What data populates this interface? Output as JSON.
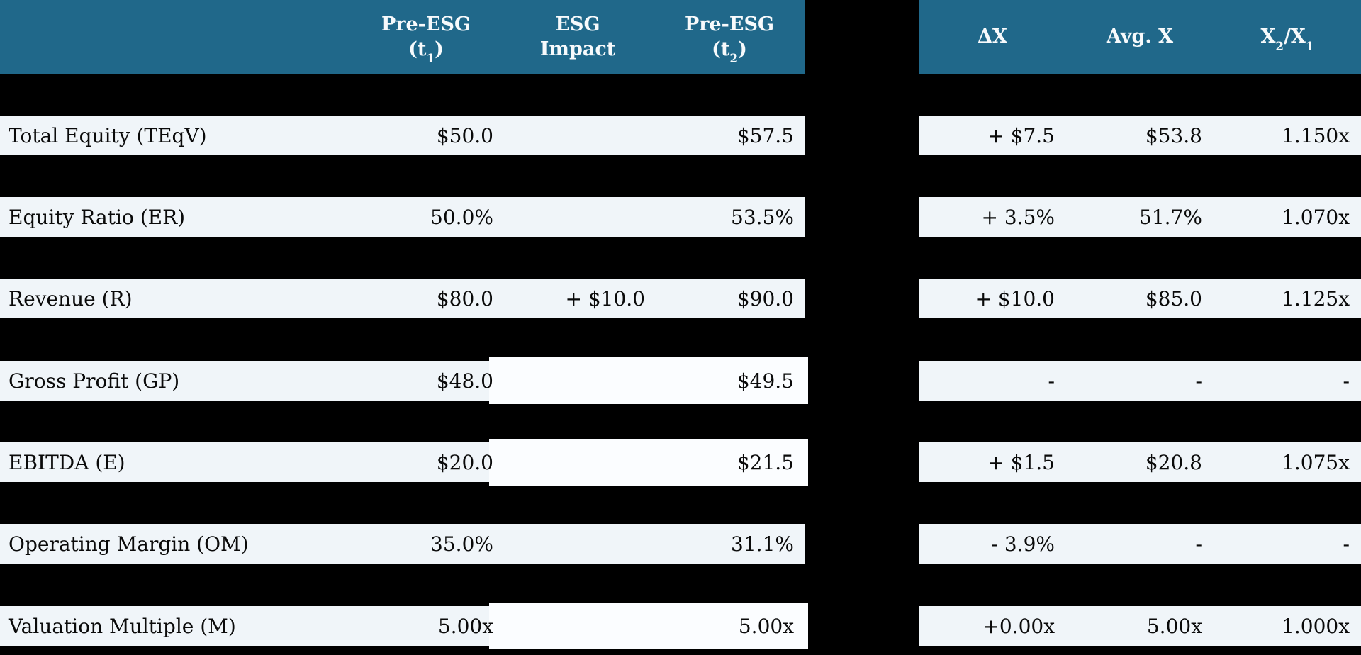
{
  "colors": {
    "background": "#000000",
    "header_teal": "#20688a",
    "header_text": "#f7fafc",
    "row_background": "#f0f5f9",
    "highlight_box_background": "#fbfdff",
    "row_text": "#0a0a0a"
  },
  "left_table": {
    "columns": [
      {
        "line1": "Pre-ESG",
        "line2_pre": "(t",
        "line2_sub": "1",
        "line2_post": ")"
      },
      {
        "line1": "ESG",
        "line2_pre": "Impact",
        "line2_sub": "",
        "line2_post": ""
      },
      {
        "line1": "Pre-ESG",
        "line2_pre": "(t",
        "line2_sub": "2",
        "line2_post": ")"
      }
    ]
  },
  "right_table": {
    "columns": [
      {
        "pre": "ΔX",
        "sub": "",
        "mid": "",
        "sub2": ""
      },
      {
        "pre": "Avg. X",
        "sub": "",
        "mid": "",
        "sub2": ""
      },
      {
        "pre": "X",
        "sub": "2",
        "mid": "/X",
        "sub2": "1"
      }
    ]
  },
  "rows": [
    {
      "label": "Total Equity (TEqV)",
      "t1": "$50.0",
      "esg": "",
      "t2": "$57.5",
      "dx": "+ $7.5",
      "avg": "$53.8",
      "ratio": "1.150x",
      "boxed": false
    },
    {
      "label": "Equity Ratio (ER)",
      "t1": "50.0%",
      "esg": "",
      "t2": "53.5%",
      "dx": "+ 3.5%",
      "avg": "51.7%",
      "ratio": "1.070x",
      "boxed": false
    },
    {
      "label": "Revenue (R)",
      "t1": "$80.0",
      "esg": "+ $10.0",
      "t2": "$90.0",
      "dx": "+ $10.0",
      "avg": "$85.0",
      "ratio": "1.125x",
      "boxed": false
    },
    {
      "label": "Gross Profit (GP)",
      "t1": "$48.0",
      "esg": "",
      "t2": "$49.5",
      "dx": "-",
      "avg": "-",
      "ratio": "-",
      "boxed": true
    },
    {
      "label": "EBITDA (E)",
      "t1": "$20.0",
      "esg": "",
      "t2": "$21.5",
      "dx": "+ $1.5",
      "avg": "$20.8",
      "ratio": "1.075x",
      "boxed": true
    },
    {
      "label": "Operating Margin (OM)",
      "t1": "35.0%",
      "esg": "",
      "t2": "31.1%",
      "dx": "- 3.9%",
      "avg": "-",
      "ratio": "-",
      "boxed": false
    },
    {
      "label": "Valuation Multiple (M)",
      "t1": "5.00x",
      "esg": "",
      "t2": "5.00x",
      "dx": "+0.00x",
      "avg": "5.00x",
      "ratio": "1.000x",
      "boxed": true
    }
  ]
}
